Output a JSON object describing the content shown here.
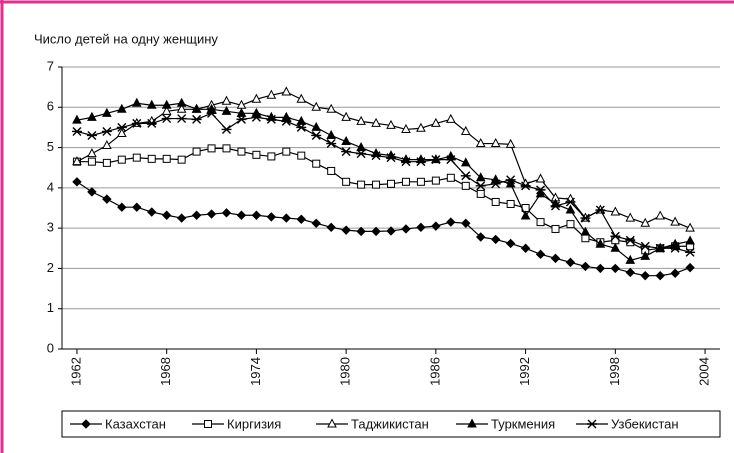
{
  "chart_data": {
    "type": "line",
    "ylabel": "Число детей на одну женщину",
    "x": [
      1962,
      1963,
      1964,
      1965,
      1966,
      1967,
      1968,
      1969,
      1970,
      1971,
      1972,
      1973,
      1974,
      1975,
      1976,
      1977,
      1978,
      1979,
      1980,
      1981,
      1982,
      1983,
      1984,
      1985,
      1986,
      1987,
      1988,
      1989,
      1990,
      1991,
      1992,
      1993,
      1994,
      1995,
      1996,
      1997,
      1998,
      1999,
      2000,
      2001,
      2002,
      2003
    ],
    "xlim": [
      1961,
      2005
    ],
    "xticks": [
      1962,
      1968,
      1974,
      1980,
      1986,
      1992,
      1998,
      2004
    ],
    "ylim": [
      0,
      7
    ],
    "yticks": [
      0,
      1,
      2,
      3,
      4,
      5,
      6,
      7
    ],
    "grid": true,
    "legend": "bottom",
    "series": [
      {
        "name": "Казахстан",
        "color": "#000000",
        "marker": "diamond",
        "values": [
          4.15,
          3.9,
          3.72,
          3.52,
          3.52,
          3.4,
          3.32,
          3.25,
          3.32,
          3.35,
          3.38,
          3.32,
          3.32,
          3.28,
          3.25,
          3.22,
          3.12,
          3.02,
          2.95,
          2.92,
          2.92,
          2.93,
          2.98,
          3.02,
          3.05,
          3.15,
          3.12,
          2.78,
          2.72,
          2.62,
          2.5,
          2.35,
          2.25,
          2.15,
          2.05,
          2.0,
          2.0,
          1.9,
          1.82,
          1.82,
          1.88,
          2.02
        ]
      },
      {
        "name": "Киргизия",
        "color": "#000000",
        "marker": "square-open",
        "values": [
          4.65,
          4.65,
          4.62,
          4.7,
          4.75,
          4.72,
          4.72,
          4.7,
          4.9,
          4.98,
          4.98,
          4.9,
          4.82,
          4.78,
          4.9,
          4.8,
          4.6,
          4.42,
          4.15,
          4.08,
          4.08,
          4.1,
          4.15,
          4.15,
          4.18,
          4.25,
          4.05,
          3.85,
          3.65,
          3.6,
          3.5,
          3.15,
          2.98,
          3.1,
          2.75,
          2.65,
          2.7,
          2.65,
          2.45,
          2.5,
          2.55,
          2.55
        ]
      },
      {
        "name": "Таджикистан",
        "color": "#000000",
        "marker": "triangle-open",
        "values": [
          4.65,
          4.85,
          5.05,
          5.35,
          5.6,
          5.65,
          5.9,
          5.95,
          5.95,
          6.05,
          6.15,
          6.05,
          6.2,
          6.3,
          6.38,
          6.2,
          6.0,
          5.95,
          5.75,
          5.65,
          5.6,
          5.55,
          5.45,
          5.48,
          5.6,
          5.7,
          5.4,
          5.1,
          5.1,
          5.08,
          4.1,
          4.22,
          3.75,
          3.72,
          3.25,
          3.45,
          3.4,
          3.25,
          3.12,
          3.3,
          3.15,
          3.0
        ]
      },
      {
        "name": "Туркмения",
        "color": "#000000",
        "marker": "triangle",
        "values": [
          5.68,
          5.75,
          5.85,
          5.95,
          6.1,
          6.05,
          6.05,
          6.1,
          5.95,
          5.95,
          5.9,
          5.85,
          5.85,
          5.75,
          5.75,
          5.65,
          5.5,
          5.3,
          5.15,
          5.0,
          4.85,
          4.8,
          4.7,
          4.7,
          4.7,
          4.78,
          4.62,
          4.25,
          4.2,
          4.1,
          3.3,
          3.85,
          3.6,
          3.45,
          2.9,
          2.6,
          2.5,
          2.2,
          2.3,
          2.5,
          2.6,
          2.68
        ]
      },
      {
        "name": "Узбекистан",
        "color": "#000000",
        "marker": "asterisk",
        "values": [
          5.4,
          5.3,
          5.4,
          5.5,
          5.6,
          5.6,
          5.72,
          5.72,
          5.7,
          5.85,
          5.45,
          5.7,
          5.75,
          5.7,
          5.65,
          5.5,
          5.3,
          5.1,
          4.9,
          4.85,
          4.8,
          4.75,
          4.65,
          4.65,
          4.7,
          4.7,
          4.3,
          4.05,
          4.1,
          4.2,
          4.05,
          3.95,
          3.55,
          3.65,
          3.25,
          3.45,
          2.8,
          2.7,
          2.55,
          2.5,
          2.5,
          2.4
        ]
      }
    ]
  }
}
